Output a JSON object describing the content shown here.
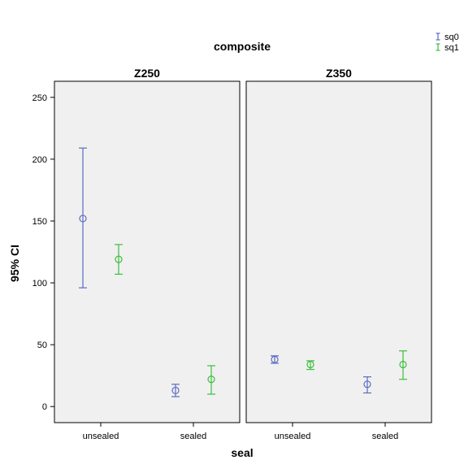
{
  "chart_data": {
    "type": "errorbar",
    "title": "composite",
    "xlabel": "seal",
    "ylabel": "95% CI",
    "ylim": [
      -13,
      263
    ],
    "yticks": [
      0,
      50,
      100,
      150,
      200,
      250
    ],
    "categories": [
      "unsealed",
      "sealed"
    ],
    "legend_placement": "top-right",
    "grid": false,
    "panels": [
      {
        "name": "Z250",
        "series": [
          {
            "name": "sq0",
            "color": "#5b6bc0",
            "points": [
              {
                "category": "unsealed",
                "mean": 152,
                "lower": 96,
                "upper": 209
              },
              {
                "category": "sealed",
                "mean": 13,
                "lower": 8,
                "upper": 18
              }
            ]
          },
          {
            "name": "sq1",
            "color": "#3cbf3c",
            "points": [
              {
                "category": "unsealed",
                "mean": 119,
                "lower": 107,
                "upper": 131
              },
              {
                "category": "sealed",
                "mean": 22,
                "lower": 10,
                "upper": 33
              }
            ]
          }
        ]
      },
      {
        "name": "Z350",
        "series": [
          {
            "name": "sq0",
            "color": "#5b6bc0",
            "points": [
              {
                "category": "unsealed",
                "mean": 38,
                "lower": 35,
                "upper": 41
              },
              {
                "category": "sealed",
                "mean": 18,
                "lower": 11,
                "upper": 24
              }
            ]
          },
          {
            "name": "sq1",
            "color": "#3cbf3c",
            "points": [
              {
                "category": "unsealed",
                "mean": 34,
                "lower": 30,
                "upper": 37
              },
              {
                "category": "sealed",
                "mean": 34,
                "lower": 22,
                "upper": 45
              }
            ]
          }
        ]
      }
    ]
  }
}
